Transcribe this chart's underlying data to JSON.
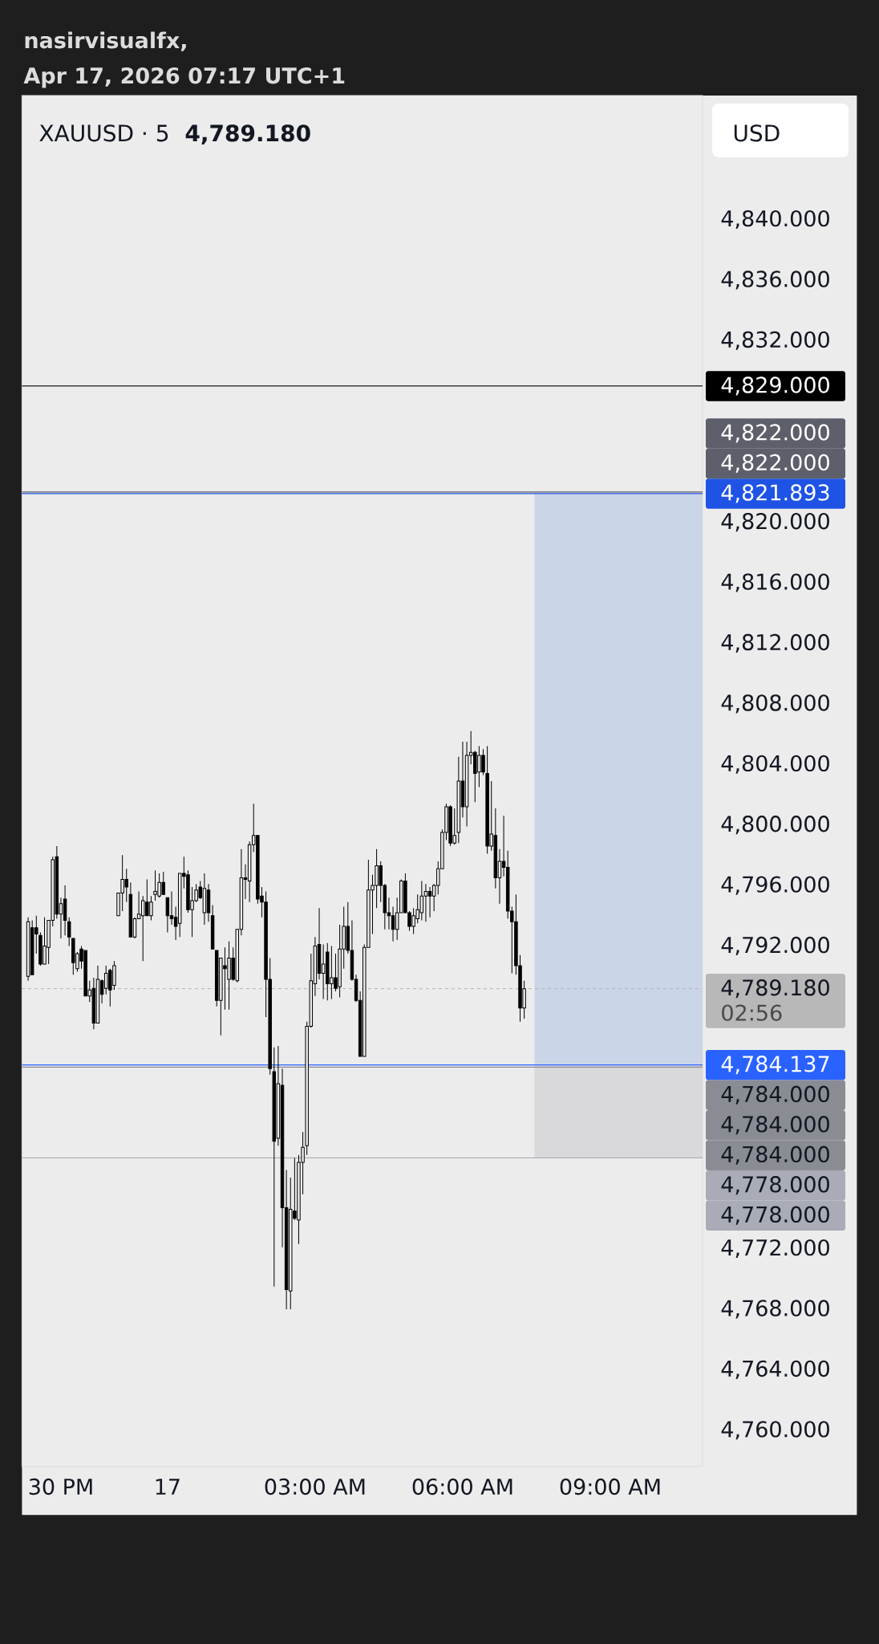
{
  "chart_data": {
    "type": "candlestick",
    "title": "XAUUSD · 5",
    "ylabel": "USD",
    "color": "#000000",
    "categories": [
      null,
      null,
      null,
      null,
      null,
      null,
      null,
      null,
      "30 PM",
      null,
      null,
      null,
      null,
      null,
      null,
      null,
      null,
      null,
      null,
      null,
      null,
      null,
      null,
      null,
      null,
      null,
      null,
      null,
      null,
      null,
      null,
      null,
      null,
      null,
      "17",
      null,
      null,
      null,
      null,
      null,
      null,
      null,
      null,
      null,
      null,
      null,
      null,
      null,
      null,
      null,
      null,
      null,
      null,
      null,
      null,
      null,
      null,
      null,
      null,
      null,
      null,
      null,
      null,
      null,
      null,
      null,
      null,
      null,
      null,
      null,
      "03:00 AM",
      null,
      null,
      null,
      null,
      null,
      null,
      null,
      null,
      null,
      null,
      null,
      null,
      null,
      null,
      null,
      null,
      null,
      null,
      null,
      null,
      null,
      null,
      null,
      null,
      null,
      null,
      null,
      null,
      null,
      null,
      null,
      null,
      null,
      null,
      null,
      "06:00 AM",
      null,
      null,
      null,
      null,
      null,
      null,
      null,
      null,
      null,
      null,
      null,
      null,
      null,
      null,
      null,
      null,
      null,
      null,
      null,
      null,
      null,
      null,
      null,
      null,
      null,
      null,
      null,
      null,
      null,
      null,
      null,
      null,
      null,
      null,
      null,
      "09:00 AM",
      null,
      null,
      null,
      null,
      null,
      null,
      null,
      null,
      null,
      null,
      null,
      null,
      null,
      null,
      null,
      null,
      null,
      null,
      null,
      null,
      null,
      null
    ],
    "ohlc": [
      [
        4790.0,
        4793.9,
        4789.7,
        4793.6
      ],
      [
        4793.2,
        4793.7,
        4790.1,
        4790.1
      ],
      [
        4793.2,
        4794.0,
        4791.5,
        4792.8
      ],
      [
        4792.7,
        4792.9,
        4790.7,
        4790.8
      ],
      [
        4790.8,
        4793.9,
        4790.8,
        4792.0
      ],
      [
        4791.9,
        4793.7,
        4790.8,
        4793.7
      ],
      [
        4793.7,
        4797.9,
        4793.3,
        4797.7
      ],
      [
        4797.9,
        4798.6,
        4793.8,
        4794.1
      ],
      [
        4794.1,
        4795.2,
        4792.5,
        4794.8
      ],
      [
        4795.1,
        4796.0,
        4792.7,
        4793.7
      ],
      [
        4793.6,
        4793.9,
        4792.0,
        4792.6
      ],
      [
        4792.5,
        4792.5,
        4790.1,
        4790.9
      ],
      [
        4790.5,
        4791.6,
        4790.3,
        4791.5
      ],
      [
        4791.8,
        4792.0,
        4790.5,
        4791.0
      ],
      [
        4791.7,
        4791.7,
        4788.7,
        4788.7
      ],
      [
        4788.7,
        4789.7,
        4788.3,
        4789.1
      ],
      [
        4789.2,
        4789.9,
        4786.5,
        4786.9
      ],
      [
        4786.9,
        4790.7,
        4786.9,
        4789.8
      ],
      [
        4789.7,
        4789.8,
        4788.2,
        4788.8
      ],
      [
        4789.2,
        4790.7,
        4788.8,
        4790.2
      ],
      [
        4790.4,
        4790.5,
        4788.0,
        4789.1
      ],
      [
        4789.4,
        4791.0,
        4789.1,
        4790.7
      ],
      [
        4794.0,
        4795.5,
        4794.0,
        4795.5
      ],
      [
        4795.5,
        4798.0,
        4794.3,
        4796.4
      ],
      [
        4796.4,
        4797.1,
        4794.9,
        4795.9
      ],
      [
        4795.4,
        4796.2,
        4792.6,
        4792.6
      ],
      [
        4792.6,
        4793.9,
        4792.5,
        4793.8
      ],
      [
        4793.8,
        4795.6,
        4793.8,
        4794.1
      ],
      [
        4794.0,
        4795.3,
        4791.0,
        4795.0
      ],
      [
        4794.9,
        4796.4,
        4794.0,
        4794.0
      ],
      [
        4794.0,
        4795.3,
        4793.7,
        4794.9
      ],
      [
        4795.4,
        4797.0,
        4795.0,
        4795.6
      ],
      [
        4795.3,
        4796.8,
        4795.2,
        4796.2
      ],
      [
        4796.2,
        4796.9,
        4795.4,
        4795.4
      ],
      [
        4795.2,
        4795.2,
        4792.9,
        4794.0
      ],
      [
        4794.0,
        4795.6,
        4793.4,
        4793.8
      ],
      [
        4793.9,
        4794.6,
        4792.4,
        4793.3
      ],
      [
        4793.5,
        4796.8,
        4792.6,
        4796.8
      ],
      [
        4796.8,
        4797.9,
        4795.8,
        4796.6
      ],
      [
        4796.7,
        4797.0,
        4794.2,
        4794.4
      ],
      [
        4794.4,
        4795.9,
        4792.6,
        4795.0
      ],
      [
        4795.0,
        4796.1,
        4794.9,
        4795.7
      ],
      [
        4795.9,
        4796.3,
        4795.1,
        4795.2
      ],
      [
        4794.2,
        4796.8,
        4793.4,
        4795.8
      ],
      [
        4795.7,
        4796.1,
        4793.6,
        4794.2
      ],
      [
        4794.0,
        4794.7,
        4791.8,
        4791.8
      ],
      [
        4791.7,
        4791.7,
        4788.0,
        4788.4
      ],
      [
        4788.4,
        4791.2,
        4786.1,
        4791.2
      ],
      [
        4790.7,
        4791.9,
        4787.8,
        4790.5
      ],
      [
        4789.8,
        4792.3,
        4787.8,
        4791.2
      ],
      [
        4791.2,
        4791.9,
        4789.7,
        4789.8
      ],
      [
        4789.7,
        4793.1,
        4789.6,
        4793.1
      ],
      [
        4793.1,
        4798.4,
        4792.7,
        4796.5
      ],
      [
        4796.5,
        4797.4,
        4795.1,
        4796.4
      ],
      [
        4796.3,
        4798.9,
        4794.9,
        4798.7
      ],
      [
        4798.7,
        4801.4,
        4798.2,
        4799.3
      ],
      [
        4799.3,
        4799.3,
        4794.8,
        4795.1
      ],
      [
        4795.3,
        4795.9,
        4793.9,
        4794.9
      ],
      [
        4794.9,
        4795.6,
        4787.3,
        4789.8
      ],
      [
        4789.8,
        4791.2,
        4783.5,
        4783.9
      ],
      [
        4783.7,
        4785.3,
        4769.5,
        4779.1
      ],
      [
        4779.3,
        4785.4,
        4778.8,
        4782.9
      ],
      [
        4782.8,
        4783.9,
        4772.1,
        4774.7
      ],
      [
        4774.7,
        4777.2,
        4768.0,
        4769.3
      ],
      [
        4769.2,
        4776.7,
        4768.0,
        4774.6
      ],
      [
        4774.5,
        4778.0,
        4773.9,
        4774.0
      ],
      [
        4773.9,
        4778.2,
        4772.3,
        4777.7
      ],
      [
        4777.7,
        4779.7,
        4775.6,
        4778.7
      ],
      [
        4778.8,
        4787.0,
        4778.2,
        4786.7
      ],
      [
        4786.7,
        4791.5,
        4786.6,
        4789.7
      ],
      [
        4789.5,
        4792.6,
        4788.7,
        4792.0
      ],
      [
        4792.1,
        4794.5,
        4789.8,
        4790.2
      ],
      [
        4790.2,
        4792.1,
        4788.5,
        4790.8
      ],
      [
        4791.6,
        4792.2,
        4788.4,
        4789.5
      ],
      [
        4789.5,
        4792.0,
        4788.5,
        4789.9
      ],
      [
        4789.9,
        4791.5,
        4789.0,
        4789.2
      ],
      [
        4789.3,
        4793.4,
        4788.6,
        4791.8
      ],
      [
        4791.8,
        4794.6,
        4790.5,
        4793.3
      ],
      [
        4793.3,
        4794.9,
        4791.5,
        4791.7
      ],
      [
        4791.7,
        4793.7,
        4789.7,
        4789.8
      ],
      [
        4789.8,
        4790.1,
        4788.3,
        4788.4
      ],
      [
        4788.4,
        4789.0,
        4784.7,
        4784.7
      ],
      [
        4784.7,
        4792.1,
        4784.7,
        4791.9
      ],
      [
        4791.9,
        4797.7,
        4791.9,
        4795.7
      ],
      [
        4795.7,
        4796.7,
        4792.8,
        4796.0
      ],
      [
        4796.0,
        4798.4,
        4794.5,
        4797.3
      ],
      [
        4797.3,
        4797.6,
        4794.9,
        4796.0
      ],
      [
        4796.0,
        4796.1,
        4793.1,
        4794.2
      ],
      [
        4794.2,
        4795.2,
        4793.1,
        4794.0
      ],
      [
        4794.0,
        4794.6,
        4792.3,
        4793.1
      ],
      [
        4793.1,
        4795.2,
        4792.4,
        4794.2
      ],
      [
        4794.2,
        4796.4,
        4794.2,
        4796.3
      ],
      [
        4796.3,
        4796.8,
        4794.2,
        4794.2
      ],
      [
        4794.2,
        4794.3,
        4793.0,
        4793.3
      ],
      [
        4793.3,
        4794.5,
        4792.8,
        4794.0
      ],
      [
        4793.8,
        4795.4,
        4793.5,
        4794.4
      ],
      [
        4794.2,
        4796.3,
        4793.7,
        4795.3
      ],
      [
        4795.3,
        4796.1,
        4793.6,
        4795.6
      ],
      [
        4795.6,
        4795.9,
        4793.9,
        4795.3
      ],
      [
        4795.3,
        4796.1,
        4794.3,
        4796.0
      ],
      [
        4796.0,
        4797.6,
        4795.4,
        4797.1
      ],
      [
        4797.1,
        4799.7,
        4797.1,
        4799.5
      ],
      [
        4799.5,
        4801.4,
        4799.0,
        4801.2
      ],
      [
        4801.2,
        4801.3,
        4798.6,
        4798.8
      ],
      [
        4798.8,
        4801.1,
        4798.7,
        4799.3
      ],
      [
        4799.5,
        4804.5,
        4798.8,
        4802.9
      ],
      [
        4802.9,
        4805.5,
        4800.5,
        4801.2
      ],
      [
        4801.2,
        4805.5,
        4799.9,
        4804.6
      ],
      [
        4804.6,
        4806.2,
        4804.0,
        4804.8
      ],
      [
        4804.8,
        4804.9,
        4801.5,
        4803.4
      ],
      [
        4803.5,
        4805.2,
        4802.5,
        4804.6
      ],
      [
        4804.6,
        4805.0,
        4803.3,
        4803.5
      ],
      [
        4803.4,
        4805.2,
        4798.1,
        4798.6
      ],
      [
        4798.6,
        4802.9,
        4798.3,
        4799.4
      ],
      [
        4799.3,
        4801.1,
        4795.8,
        4796.5
      ],
      [
        4796.5,
        4798.4,
        4794.8,
        4797.6
      ],
      [
        4797.6,
        4800.6,
        4796.6,
        4797.2
      ],
      [
        4797.2,
        4798.3,
        4793.8,
        4794.3
      ],
      [
        4794.3,
        4794.6,
        4790.2,
        4793.6
      ],
      [
        4793.6,
        4795.4,
        4790.1,
        4790.7
      ],
      [
        4790.7,
        4791.4,
        4787.0,
        4787.9
      ],
      [
        4787.9,
        4789.7,
        4787.2,
        4789.18
      ],
      null,
      null,
      null,
      null,
      null,
      null,
      null,
      null,
      null,
      null,
      null,
      null,
      null,
      null,
      null,
      null,
      null,
      null,
      null,
      null,
      null,
      null,
      null,
      null,
      null,
      null,
      null,
      null,
      null,
      null,
      null,
      null,
      null,
      null,
      null,
      null,
      null,
      null,
      null,
      null,
      null,
      null,
      null
    ],
    "ylim": [
      4757.6,
      4848.2
    ],
    "yticks": [
      {
        "value": 4760,
        "label": "4,760.000"
      },
      {
        "value": 4764,
        "label": "4,764.000"
      },
      {
        "value": 4768,
        "label": "4,768.000"
      },
      {
        "value": 4772,
        "label": "4,772.000"
      },
      {
        "value": 4792,
        "label": "4,792.000"
      },
      {
        "value": 4796,
        "label": "4,796.000"
      },
      {
        "value": 4800,
        "label": "4,800.000"
      },
      {
        "value": 4804,
        "label": "4,804.000"
      },
      {
        "value": 4808,
        "label": "4,808.000"
      },
      {
        "value": 4812,
        "label": "4,812.000"
      },
      {
        "value": 4816,
        "label": "4,816.000"
      },
      {
        "value": 4820,
        "label": "4,820.000"
      },
      {
        "value": 4832,
        "label": "4,832.000"
      },
      {
        "value": 4836,
        "label": "4,836.000"
      },
      {
        "value": 4840,
        "label": "4,840.000"
      }
    ],
    "ref_lines": [
      {
        "axis": "y",
        "value": 4789.18,
        "label": "4,789.180",
        "color": "#b8b8b8",
        "line_style": "dotted"
      },
      {
        "axis": "y",
        "value": 4784.137,
        "label": "4,784.137",
        "color": "#2962ff"
      },
      {
        "axis": "y",
        "value": 4829,
        "label": "4,829.000",
        "color": "#000000"
      },
      {
        "axis": "y",
        "value": 4822,
        "label": "4,822.000",
        "color": "#5d606b"
      },
      {
        "axis": "y",
        "value": 4821.893,
        "label": "4,821.893",
        "color": "#1e53e5"
      },
      {
        "axis": "y",
        "value": 4784,
        "label": "4,784.000",
        "color": "#8a8c94"
      },
      {
        "axis": "y",
        "value": 4778,
        "label": "4,778.000",
        "color": "#a9acb6"
      }
    ],
    "bands": [
      {
        "axis": "y",
        "from": 4784.137,
        "to": 4821.893,
        "color": "#cbd5e8"
      },
      {
        "axis": "y",
        "from": 4778,
        "to": 4784.137,
        "color": "#d9d9dc"
      }
    ],
    "annotations": [
      "nasirvisualfx,",
      "Apr 17, 2026 07:17 UTC+1",
      "4,789.180",
      "02:56",
      "4,822.000",
      "4,784.000",
      "4,784.000",
      "4,778.000"
    ]
  }
}
